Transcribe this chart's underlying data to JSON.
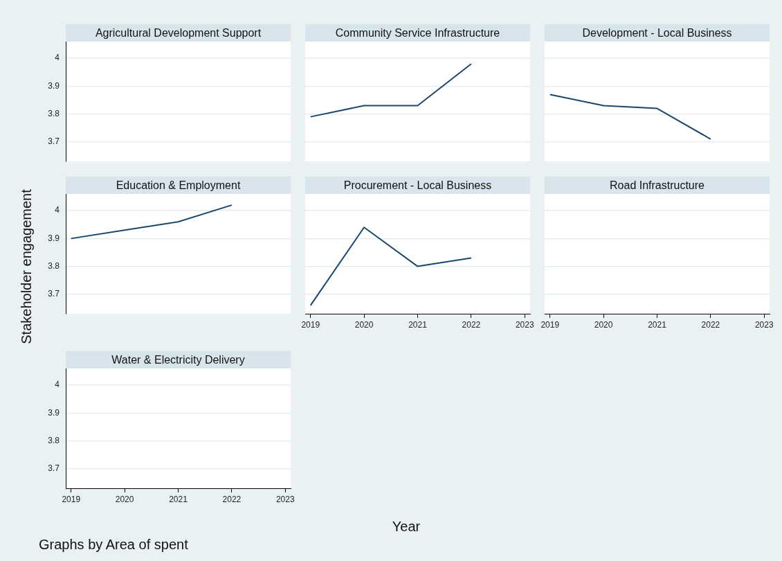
{
  "chart_data": [
    {
      "type": "line",
      "title": "Agricultural Development Support",
      "xlim": [
        2018.9,
        2023.1
      ],
      "ylim": [
        3.63,
        4.06
      ],
      "yticks": [
        3.7,
        3.8,
        3.9,
        4
      ],
      "xticks": [
        2019,
        2020,
        2021,
        2022,
        2023
      ],
      "grid": "y",
      "tick_labels": "y"
    },
    {
      "type": "line",
      "title": "Community Service Infrastructure",
      "x": [
        2019,
        2020,
        2021,
        2022
      ],
      "values": [
        3.79,
        3.83,
        3.83,
        3.98
      ],
      "color": "#1a476f",
      "xlim": [
        2018.9,
        2023.1
      ],
      "ylim": [
        3.63,
        4.06
      ],
      "yticks": [
        3.7,
        3.8,
        3.9,
        4
      ],
      "xticks": [
        2019,
        2020,
        2021,
        2022,
        2023
      ],
      "grid": "y",
      "tick_labels": false
    },
    {
      "type": "line",
      "title": "Development - Local Business",
      "x": [
        2019,
        2020,
        2021,
        2022
      ],
      "values": [
        3.87,
        3.83,
        3.82,
        3.71
      ],
      "color": "#1a476f",
      "xlim": [
        2018.9,
        2023.1
      ],
      "ylim": [
        3.63,
        4.06
      ],
      "yticks": [
        3.7,
        3.8,
        3.9,
        4
      ],
      "xticks": [
        2019,
        2020,
        2021,
        2022,
        2023
      ],
      "grid": "y",
      "tick_labels": false
    },
    {
      "type": "line",
      "title": "Education & Employment",
      "ylabel": "Stakeholder engagement",
      "x": [
        2019,
        2020,
        2021,
        2022
      ],
      "values": [
        3.9,
        3.93,
        3.96,
        4.02
      ],
      "color": "#1a476f",
      "xlim": [
        2018.9,
        2023.1
      ],
      "ylim": [
        3.63,
        4.06
      ],
      "yticks": [
        3.7,
        3.8,
        3.9,
        4
      ],
      "xticks": [
        2019,
        2020,
        2021,
        2022,
        2023
      ],
      "grid": "y",
      "tick_labels": "y"
    },
    {
      "type": "line",
      "title": "Procurement - Local Business",
      "xlabel": "Year",
      "x": [
        2019,
        2020,
        2021,
        2022
      ],
      "values": [
        3.66,
        3.94,
        3.8,
        3.83
      ],
      "color": "#1a476f",
      "xlim": [
        2018.9,
        2023.1
      ],
      "ylim": [
        3.63,
        4.06
      ],
      "yticks": [
        3.7,
        3.8,
        3.9,
        4
      ],
      "xticks": [
        2019,
        2020,
        2021,
        2022,
        2023
      ],
      "grid": "y",
      "tick_labels": "x"
    },
    {
      "type": "line",
      "title": "Road Infrastructure",
      "xlim": [
        2018.9,
        2023.1
      ],
      "ylim": [
        3.63,
        4.06
      ],
      "yticks": [
        3.7,
        3.8,
        3.9,
        4
      ],
      "xticks": [
        2019,
        2020,
        2021,
        2022,
        2023
      ],
      "grid": "y",
      "tick_labels": "x"
    },
    {
      "type": "line",
      "title": "Water & Electricity Delivery",
      "annotations": [
        "Graphs by Area of spent"
      ],
      "xlim": [
        2018.9,
        2023.1
      ],
      "ylim": [
        3.63,
        4.06
      ],
      "yticks": [
        3.7,
        3.8,
        3.9,
        4
      ],
      "xticks": [
        2019,
        2020,
        2021,
        2022,
        2023
      ],
      "grid": "y"
    }
  ]
}
